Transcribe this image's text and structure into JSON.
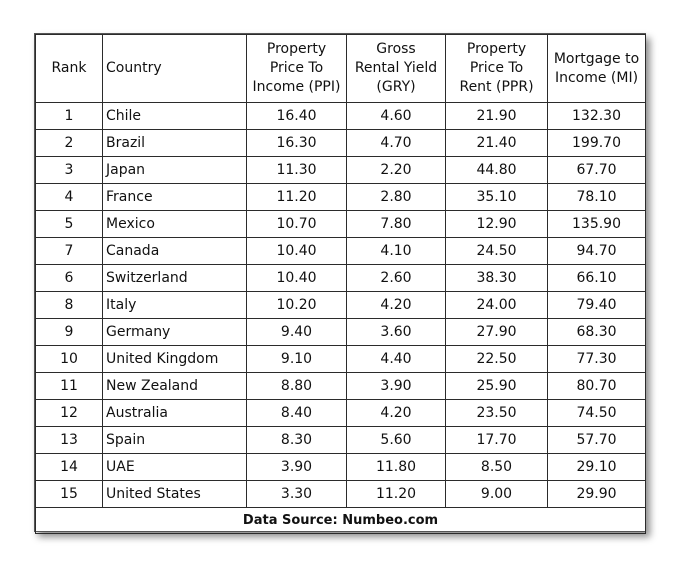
{
  "headers": {
    "rank": "Rank",
    "country": "Country",
    "ppi": "Property\nPrice To\nIncome (PPI)",
    "gry": "Gross\nRental Yield\n(GRY)",
    "ppr": "Property\nPrice To\nRent (PPR)",
    "mi": "Mortgage to\nIncome (MI)"
  },
  "rows": [
    {
      "rank": "1",
      "country": "Chile",
      "ppi": "16.40",
      "gry": "4.60",
      "ppr": "21.90",
      "mi": "132.30"
    },
    {
      "rank": "2",
      "country": "Brazil",
      "ppi": "16.30",
      "gry": "4.70",
      "ppr": "21.40",
      "mi": "199.70"
    },
    {
      "rank": "3",
      "country": "Japan",
      "ppi": "11.30",
      "gry": "2.20",
      "ppr": "44.80",
      "mi": "67.70"
    },
    {
      "rank": "4",
      "country": "France",
      "ppi": "11.20",
      "gry": "2.80",
      "ppr": "35.10",
      "mi": "78.10"
    },
    {
      "rank": "5",
      "country": "Mexico",
      "ppi": "10.70",
      "gry": "7.80",
      "ppr": "12.90",
      "mi": "135.90"
    },
    {
      "rank": "7",
      "country": "Canada",
      "ppi": "10.40",
      "gry": "4.10",
      "ppr": "24.50",
      "mi": "94.70"
    },
    {
      "rank": "6",
      "country": "Switzerland",
      "ppi": "10.40",
      "gry": "2.60",
      "ppr": "38.30",
      "mi": "66.10"
    },
    {
      "rank": "8",
      "country": "Italy",
      "ppi": "10.20",
      "gry": "4.20",
      "ppr": "24.00",
      "mi": "79.40"
    },
    {
      "rank": "9",
      "country": "Germany",
      "ppi": "9.40",
      "gry": "3.60",
      "ppr": "27.90",
      "mi": "68.30"
    },
    {
      "rank": "10",
      "country": "United Kingdom",
      "ppi": "9.10",
      "gry": "4.40",
      "ppr": "22.50",
      "mi": "77.30"
    },
    {
      "rank": "11",
      "country": "New Zealand",
      "ppi": "8.80",
      "gry": "3.90",
      "ppr": "25.90",
      "mi": "80.70"
    },
    {
      "rank": "12",
      "country": "Australia",
      "ppi": "8.40",
      "gry": "4.20",
      "ppr": "23.50",
      "mi": "74.50"
    },
    {
      "rank": "13",
      "country": "Spain",
      "ppi": "8.30",
      "gry": "5.60",
      "ppr": "17.70",
      "mi": "57.70"
    },
    {
      "rank": "14",
      "country": "UAE",
      "ppi": "3.90",
      "gry": "11.80",
      "ppr": "8.50",
      "mi": "29.10"
    },
    {
      "rank": "15",
      "country": "United States",
      "ppi": "3.30",
      "gry": "11.20",
      "ppr": "9.00",
      "mi": "29.90"
    }
  ],
  "footer": {
    "source": "Data Source: Numbeo.com"
  }
}
